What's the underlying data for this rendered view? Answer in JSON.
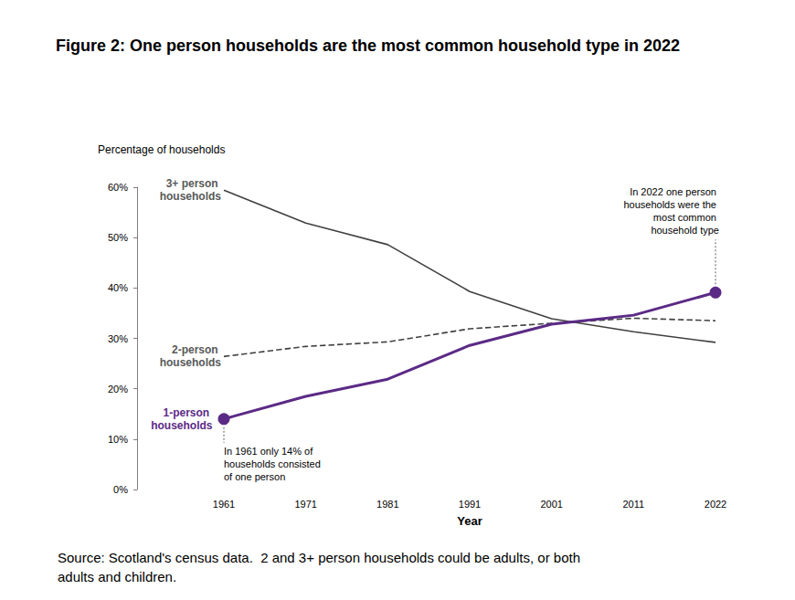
{
  "chart_data": {
    "type": "line",
    "title": "Figure 2: One person households are the most common household type in 2022",
    "y_label": "Percentage of households",
    "x_label": "Year",
    "source": "Source: Scotland's census data.  2 and 3+ person households could be adults, or both adults and children.",
    "categories": [
      "1961",
      "1971",
      "1981",
      "1991",
      "2001",
      "2011",
      "2022"
    ],
    "series": [
      {
        "name": "3+ person households",
        "color": "#404040",
        "line_style": "solid",
        "marker": "none",
        "values": [
          59.4,
          52.9,
          48.6,
          39.3,
          33.9,
          31.3,
          29.2
        ]
      },
      {
        "name": "2-person households",
        "color": "#404040",
        "line_style": "dashed",
        "marker": "none",
        "values": [
          26.4,
          28.4,
          29.3,
          31.9,
          33.0,
          34.0,
          33.5
        ]
      },
      {
        "name": "1-person households",
        "color": "#5b2a86",
        "line_style": "solid",
        "marker": "circle",
        "values": [
          14,
          18.5,
          21.9,
          28.6,
          32.8,
          34.6,
          39.1
        ]
      }
    ],
    "annotations": [
      {
        "text": "In 1961 only 14% of households consisted of one person",
        "x": "1961",
        "y": 14
      },
      {
        "text": "In 2022 one person households were the most common household type",
        "x": "2022",
        "y": 39.1
      }
    ],
    "ylim": [
      0,
      60
    ],
    "yticks": [
      {
        "value": 0,
        "label": "0%"
      },
      {
        "value": 10,
        "label": "10%"
      },
      {
        "value": 20,
        "label": "20%"
      },
      {
        "value": 30,
        "label": "30%"
      },
      {
        "value": 40,
        "label": "40%"
      },
      {
        "value": 50,
        "label": "50%"
      },
      {
        "value": 60,
        "label": "60%"
      }
    ],
    "grid": false
  }
}
